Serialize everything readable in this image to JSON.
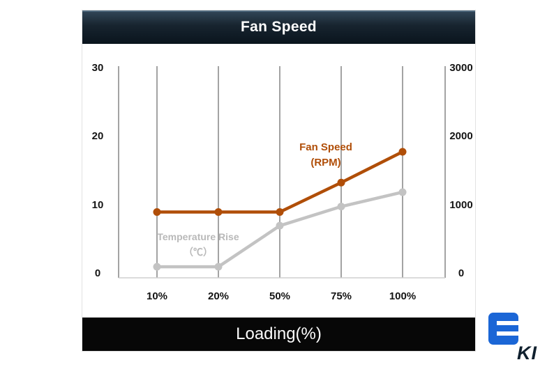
{
  "header": {
    "title": "Fan Speed"
  },
  "footer": {
    "xlabel": "Loading(%)"
  },
  "chart_data": {
    "type": "line",
    "title": "Fan Speed",
    "xlabel": "Loading(%)",
    "categories": [
      "10%",
      "20%",
      "50%",
      "75%",
      "100%"
    ],
    "left_axis": {
      "label": "Temperature Rise (℃)",
      "ticks": [
        30,
        20,
        10,
        0
      ],
      "range": [
        0,
        30
      ]
    },
    "right_axis": {
      "label": "Fan Speed (RPM)",
      "ticks": [
        3000,
        2000,
        1000,
        0
      ],
      "range": [
        0,
        3000
      ]
    },
    "grid": "vertical",
    "legend_position": "inline-annotations",
    "series": [
      {
        "name": "Fan Speed (RPM)",
        "axis": "right",
        "color": "#b04e08",
        "values": [
          900,
          900,
          900,
          1330,
          1780
        ]
      },
      {
        "name": "Temperature Rise (℃)",
        "axis": "left",
        "color": "#c3c3c3",
        "values": [
          1,
          1,
          7,
          9.8,
          11.9
        ]
      }
    ],
    "annotations": [
      {
        "id": "fan-speed-label",
        "lines": [
          "Fan Speed",
          "(RPM)"
        ],
        "color": "#b04e08"
      },
      {
        "id": "temperature-rise-label",
        "lines": [
          "Temperature Rise",
          "（℃）"
        ],
        "color": "#b9b9b9"
      }
    ]
  },
  "branding": {
    "logo_icon": "e-logo",
    "logo_color": "#1b66d6",
    "partial_text": "KI"
  }
}
